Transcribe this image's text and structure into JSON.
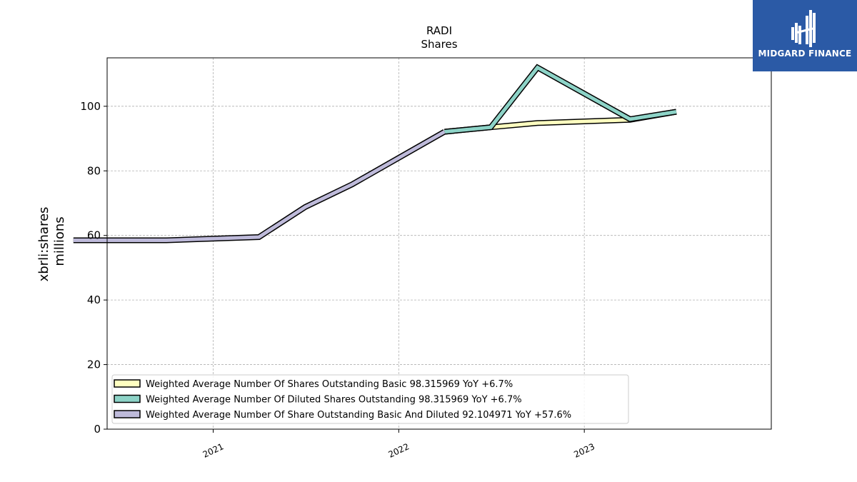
{
  "chart_data": {
    "type": "line",
    "title": "RADI",
    "subtitle": "Shares",
    "ylabel": "xbrli:shares",
    "ylabel2": "millions",
    "xlabel": "",
    "ylim": [
      0,
      115
    ],
    "yticks": [
      0,
      20,
      40,
      60,
      80,
      100
    ],
    "xticks": [
      "2021",
      "2022",
      "2023"
    ],
    "grid": true,
    "legend_position": "lower-left",
    "series": [
      {
        "name": "Weighted Average Number Of Shares Outstanding Basic",
        "legend_label": "Weighted Average Number Of Shares Outstanding Basic  98.315969 YoY +6.7%",
        "color": "#ffffc0",
        "x": [
          "2022-04-01",
          "2022-07-01",
          "2022-10-01",
          "2023-04-01",
          "2023-07-01"
        ],
        "values": [
          92.1,
          93.5,
          94.8,
          95.8,
          98.3
        ]
      },
      {
        "name": "Weighted Average Number Of Diluted Shares Outstanding",
        "legend_label": "Weighted Average Number Of Diluted Shares Outstanding  98.315969 YoY +6.7%",
        "color": "#8dd3c7",
        "x": [
          "2022-04-01",
          "2022-07-01",
          "2022-10-01",
          "2023-04-01",
          "2023-07-01"
        ],
        "values": [
          92.1,
          93.5,
          112.0,
          96.0,
          98.3
        ]
      },
      {
        "name": "Weighted Average Number Of Share Outstanding Basic And Diluted",
        "legend_label": "Weighted Average Number Of Share Outstanding Basic And Diluted  92.104971 YoY +57.6%",
        "color": "#bebada",
        "x": [
          "2020-04-01",
          "2020-10-01",
          "2021-04-01",
          "2021-07-01",
          "2021-10-01",
          "2022-04-01"
        ],
        "values": [
          58.5,
          58.5,
          59.5,
          68.8,
          75.8,
          92.1
        ]
      }
    ]
  },
  "branding": {
    "logo_text": "MIDGARD FINANCE",
    "logo_color": "#2b5aa6"
  }
}
